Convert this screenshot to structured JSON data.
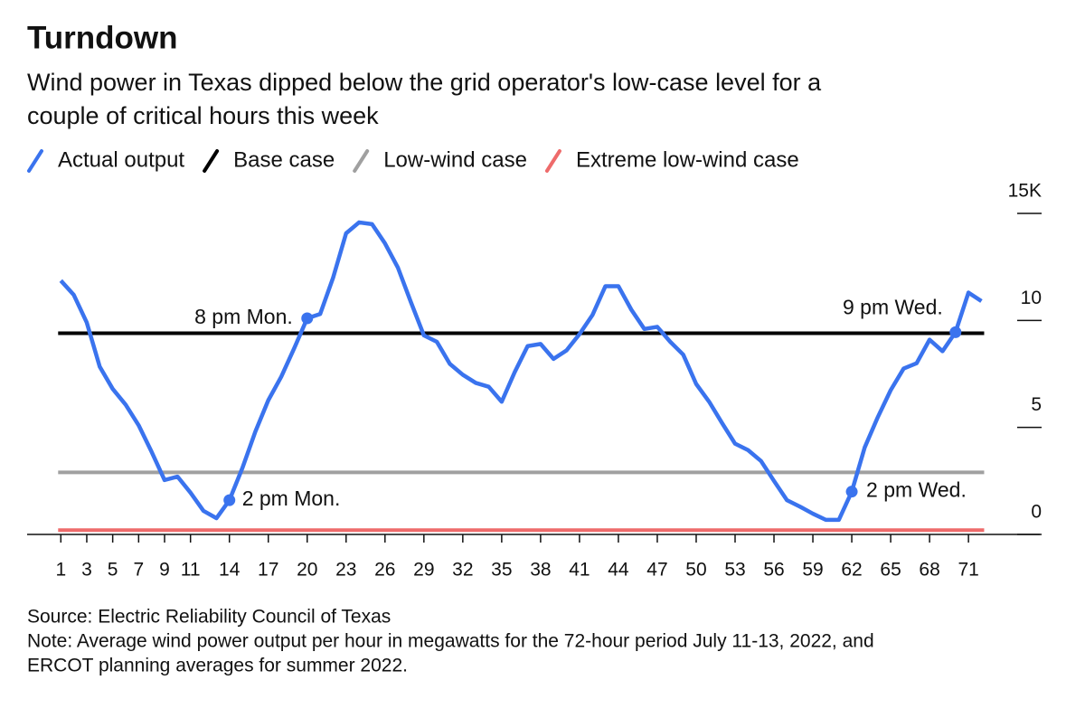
{
  "chart_data": {
    "type": "line",
    "title": "Turndown",
    "subtitle": [
      "Wind power in Texas dipped below the grid operator's low-case level for a",
      "couple of critical hours this week"
    ],
    "x": [
      1,
      2,
      3,
      4,
      5,
      6,
      7,
      8,
      9,
      10,
      11,
      12,
      13,
      14,
      15,
      16,
      17,
      18,
      19,
      20,
      21,
      22,
      23,
      24,
      25,
      26,
      27,
      28,
      29,
      30,
      31,
      32,
      33,
      34,
      35,
      36,
      37,
      38,
      39,
      40,
      41,
      42,
      43,
      44,
      45,
      46,
      47,
      48,
      49,
      50,
      51,
      52,
      53,
      54,
      55,
      56,
      57,
      58,
      59,
      60,
      61,
      62,
      63,
      64,
      65,
      66,
      67,
      68,
      69,
      70,
      71,
      72
    ],
    "series": [
      {
        "name": "Actual output",
        "color": "#3a73ee",
        "values": [
          11.86,
          11.19,
          9.9,
          7.84,
          6.8,
          6.06,
          5.1,
          3.86,
          2.54,
          2.7,
          1.95,
          1.1,
          0.76,
          1.6,
          3.1,
          4.8,
          6.27,
          7.37,
          8.7,
          10.1,
          10.3,
          12.0,
          14.07,
          14.58,
          14.5,
          13.6,
          12.46,
          10.85,
          9.3,
          9.0,
          7.97,
          7.46,
          7.08,
          6.9,
          6.2,
          7.58,
          8.8,
          8.9,
          8.2,
          8.6,
          9.36,
          10.25,
          11.6,
          11.6,
          10.5,
          9.6,
          9.7,
          9.0,
          8.4,
          7.03,
          6.2,
          5.2,
          4.24,
          3.94,
          3.43,
          2.5,
          1.6,
          1.3,
          0.97,
          0.68,
          0.68,
          2.0,
          4.07,
          5.47,
          6.74,
          7.75,
          8.0,
          9.1,
          8.56,
          9.45,
          11.3,
          10.9
        ]
      }
    ],
    "reference_lines": [
      {
        "name": "Base case",
        "color": "#000000",
        "value": 9.4
      },
      {
        "name": "Low-wind case",
        "color": "#a0a0a0",
        "value": 2.9
      },
      {
        "name": "Extreme low-wind case",
        "color": "#ee6b6b",
        "value": 0.2
      }
    ],
    "annotations": [
      {
        "text": "2 pm Mon.",
        "x": 14
      },
      {
        "text": "8 pm Mon.",
        "x": 20
      },
      {
        "text": "2 pm Wed.",
        "x": 62
      },
      {
        "text": "9 pm Wed.",
        "x": 70
      }
    ],
    "xlim": [
      -1.6,
      76.5
    ],
    "xticks": [
      1,
      3,
      5,
      7,
      9,
      11,
      14,
      17,
      20,
      23,
      26,
      29,
      32,
      35,
      38,
      41,
      44,
      47,
      50,
      53,
      56,
      59,
      62,
      65,
      68,
      71
    ],
    "ylim": [
      0,
      15
    ],
    "yticks": [
      0,
      5,
      10,
      {
        "value": 15,
        "label": "15K"
      }
    ],
    "source": "Source: Electric Reliability Council of Texas",
    "note": [
      "Note: Average wind power output per hour in megawatts for the 72-hour period July 11-13, 2022, and",
      "ERCOT planning averages for summer 2022."
    ]
  }
}
